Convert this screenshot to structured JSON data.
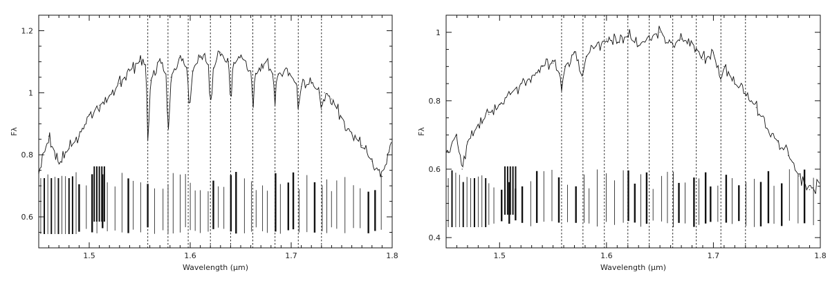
{
  "chart_data": [
    {
      "type": "line",
      "xlabel": "Wavelength (μm)",
      "ylabel": "Fλ",
      "xlim": [
        1.45,
        1.8
      ],
      "ylim": [
        0.5,
        1.25
      ],
      "xticks": [
        1.5,
        1.6,
        1.7,
        1.8
      ],
      "xtick_labels": [
        "1.5",
        "1.6",
        "1.7",
        "1.8"
      ],
      "yticks": [
        0.6,
        0.8,
        1.0,
        1.2
      ],
      "ytick_labels": [
        "0.6",
        "0.8",
        "1",
        "1.2"
      ],
      "grid": false,
      "dashed_lines_x": [
        1.558,
        1.578,
        1.598,
        1.62,
        1.64,
        1.662,
        1.684,
        1.707,
        1.73
      ],
      "series": [
        {
          "x": [
            1.45,
            1.46,
            1.47,
            1.48,
            1.49,
            1.5,
            1.51,
            1.52,
            1.53,
            1.54,
            1.55,
            1.556,
            1.558,
            1.561,
            1.57,
            1.576,
            1.578,
            1.581,
            1.59,
            1.597,
            1.599,
            1.602,
            1.61,
            1.618,
            1.62,
            1.623,
            1.63,
            1.638,
            1.64,
            1.643,
            1.65,
            1.66,
            1.662,
            1.665,
            1.675,
            1.682,
            1.684,
            1.687,
            1.695,
            1.705,
            1.707,
            1.71,
            1.72,
            1.728,
            1.73,
            1.733,
            1.74,
            1.75,
            1.76,
            1.77,
            1.78,
            1.79,
            1.8
          ],
          "y": [
            0.74,
            0.86,
            0.77,
            0.82,
            0.86,
            0.93,
            0.96,
            0.99,
            1.03,
            1.07,
            1.1,
            1.09,
            0.86,
            1.04,
            1.11,
            1.06,
            0.87,
            1.05,
            1.12,
            1.08,
            0.95,
            1.07,
            1.12,
            1.09,
            0.94,
            1.08,
            1.13,
            1.1,
            0.97,
            1.09,
            1.12,
            1.07,
            0.96,
            1.06,
            1.1,
            1.06,
            0.98,
            1.06,
            1.08,
            1.03,
            0.95,
            1.02,
            1.03,
            1.0,
            0.94,
            1.0,
            0.98,
            0.92,
            0.87,
            0.83,
            0.78,
            0.73,
            0.85
          ]
        }
      ]
    },
    {
      "type": "line",
      "xlabel": "Wavelength (μm)",
      "ylabel": "Fλ",
      "xlim": [
        1.45,
        1.8
      ],
      "ylim": [
        0.37,
        1.05
      ],
      "xticks": [
        1.5,
        1.6,
        1.7,
        1.8
      ],
      "xtick_labels": [
        "1.5",
        "1.6",
        "1.7",
        "1.8"
      ],
      "yticks": [
        0.4,
        0.6,
        0.8,
        1.0
      ],
      "ytick_labels": [
        "0.4",
        "0.6",
        "0.8",
        "1"
      ],
      "grid": false,
      "dashed_lines_x": [
        1.558,
        1.578,
        1.598,
        1.62,
        1.64,
        1.662,
        1.684,
        1.707,
        1.73
      ],
      "series": [
        {
          "x": [
            1.45,
            1.46,
            1.465,
            1.47,
            1.48,
            1.49,
            1.5,
            1.51,
            1.52,
            1.53,
            1.54,
            1.55,
            1.556,
            1.558,
            1.561,
            1.57,
            1.578,
            1.581,
            1.59,
            1.6,
            1.61,
            1.62,
            1.63,
            1.64,
            1.65,
            1.66,
            1.67,
            1.68,
            1.69,
            1.7,
            1.707,
            1.71,
            1.72,
            1.73,
            1.74,
            1.75,
            1.76,
            1.77,
            1.78,
            1.79,
            1.8
          ],
          "y": [
            0.65,
            0.7,
            0.6,
            0.68,
            0.73,
            0.76,
            0.79,
            0.82,
            0.85,
            0.87,
            0.9,
            0.91,
            0.88,
            0.84,
            0.9,
            0.94,
            0.86,
            0.93,
            0.96,
            0.98,
            0.97,
            0.99,
            0.96,
            0.99,
            1.0,
            0.97,
            0.98,
            0.97,
            0.92,
            0.94,
            0.86,
            0.9,
            0.85,
            0.82,
            0.78,
            0.72,
            0.68,
            0.64,
            0.58,
            0.54,
            0.56
          ]
        }
      ]
    }
  ]
}
